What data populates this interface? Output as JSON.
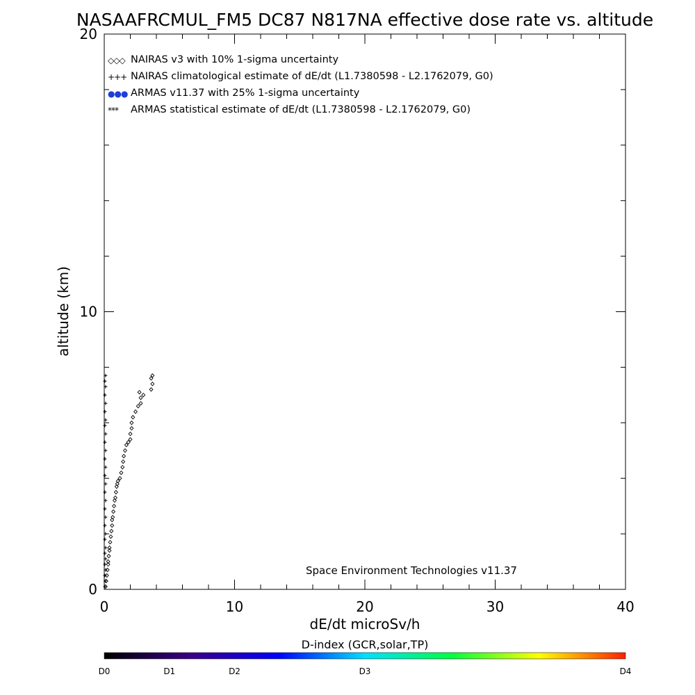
{
  "chart_data": {
    "type": "scatter",
    "title": "NASAAFRCMUL_FM5 DC87 N817NA effective dose rate vs. altitude",
    "xlabel": "dE/dt microSv/h",
    "ylabel": "altitude (km)",
    "xlim": [
      0,
      40
    ],
    "ylim": [
      0,
      20
    ],
    "x_ticks": [
      "0",
      "10",
      "20",
      "30",
      "40"
    ],
    "y_ticks": [
      "0",
      "10",
      "20"
    ],
    "grid": false,
    "legend_position": "top-left",
    "legend": [
      {
        "symbol": "◇◇◇",
        "label": "NAIRAS v3 with 10% 1-sigma uncertainty",
        "color": "#000000"
      },
      {
        "symbol": "+++",
        "label": "NAIRAS climatological estimate of dE/dt (L1.7380598 - L2.1762079, G0)",
        "color": "#000000"
      },
      {
        "symbol": "●●●",
        "label": "ARMAS v11.37 with 25% 1-sigma uncertainty",
        "color": "#1f3fd6"
      },
      {
        "symbol": "***",
        "label": "ARMAS statistical estimate of dE/dt (L1.7380598 - L2.1762079, G0)",
        "color": "#000000"
      }
    ],
    "annotation": "Space Environment Technologies v11.37",
    "series": [
      {
        "name": "NAIRAS v3 with 10% 1-sigma uncertainty",
        "marker": "diamond",
        "points": [
          [
            0.1,
            0.1
          ],
          [
            0.15,
            0.3
          ],
          [
            0.2,
            0.5
          ],
          [
            0.25,
            0.7
          ],
          [
            0.3,
            0.9
          ],
          [
            0.3,
            1.0
          ],
          [
            0.35,
            1.2
          ],
          [
            0.4,
            1.4
          ],
          [
            0.4,
            1.5
          ],
          [
            0.45,
            1.7
          ],
          [
            0.5,
            1.9
          ],
          [
            0.55,
            2.1
          ],
          [
            0.6,
            2.3
          ],
          [
            0.6,
            2.5
          ],
          [
            0.65,
            2.6
          ],
          [
            0.7,
            2.8
          ],
          [
            0.75,
            3.0
          ],
          [
            0.8,
            3.2
          ],
          [
            0.85,
            3.3
          ],
          [
            0.9,
            3.5
          ],
          [
            0.95,
            3.7
          ],
          [
            1.0,
            3.8
          ],
          [
            1.05,
            3.9
          ],
          [
            1.2,
            4.0
          ],
          [
            1.3,
            4.2
          ],
          [
            1.4,
            4.4
          ],
          [
            1.45,
            4.6
          ],
          [
            1.5,
            4.8
          ],
          [
            1.6,
            5.0
          ],
          [
            1.7,
            5.2
          ],
          [
            1.85,
            5.3
          ],
          [
            2.0,
            5.4
          ],
          [
            2.0,
            5.6
          ],
          [
            2.1,
            5.8
          ],
          [
            2.1,
            6.0
          ],
          [
            2.2,
            6.2
          ],
          [
            2.4,
            6.4
          ],
          [
            2.6,
            6.6
          ],
          [
            2.8,
            6.7
          ],
          [
            2.8,
            6.9
          ],
          [
            3.0,
            7.0
          ],
          [
            2.7,
            7.1
          ],
          [
            3.6,
            7.2
          ],
          [
            3.7,
            7.4
          ],
          [
            3.6,
            7.6
          ],
          [
            3.7,
            7.7
          ]
        ]
      },
      {
        "name": "ARMAS statistical estimate of dE/dt (L1.7380598 - L2.1762079, G0)",
        "marker": "cross",
        "points": [
          [
            0.05,
            0.1
          ],
          [
            0.08,
            0.3
          ],
          [
            0.05,
            0.5
          ],
          [
            0.1,
            0.7
          ],
          [
            0.05,
            0.9
          ],
          [
            0.1,
            1.1
          ],
          [
            0.05,
            1.3
          ],
          [
            0.1,
            1.5
          ],
          [
            0.05,
            1.8
          ],
          [
            0.1,
            2.0
          ],
          [
            0.05,
            2.3
          ],
          [
            0.1,
            2.6
          ],
          [
            0.05,
            2.9
          ],
          [
            0.1,
            3.2
          ],
          [
            0.05,
            3.5
          ],
          [
            0.1,
            3.8
          ],
          [
            0.05,
            4.1
          ],
          [
            0.1,
            4.4
          ],
          [
            0.05,
            4.7
          ],
          [
            0.1,
            5.0
          ],
          [
            0.05,
            5.3
          ],
          [
            0.1,
            5.6
          ],
          [
            0.05,
            5.9
          ],
          [
            0.1,
            6.1
          ],
          [
            0.05,
            6.4
          ],
          [
            0.1,
            6.7
          ],
          [
            0.05,
            7.0
          ],
          [
            0.1,
            7.3
          ],
          [
            0.05,
            7.5
          ],
          [
            0.1,
            7.7
          ]
        ]
      }
    ],
    "colorbar": {
      "title": "D-index (GCR,solar,TP)",
      "labels": [
        "D0",
        "D1",
        "D2",
        "D3",
        "D4"
      ],
      "label_positions": [
        0.0,
        0.125,
        0.25,
        0.5,
        1.0
      ],
      "stops": [
        "#000000",
        "#3a0088",
        "#0000ff",
        "#00e0ff",
        "#00ff40",
        "#ffff00",
        "#ff2000"
      ]
    }
  }
}
